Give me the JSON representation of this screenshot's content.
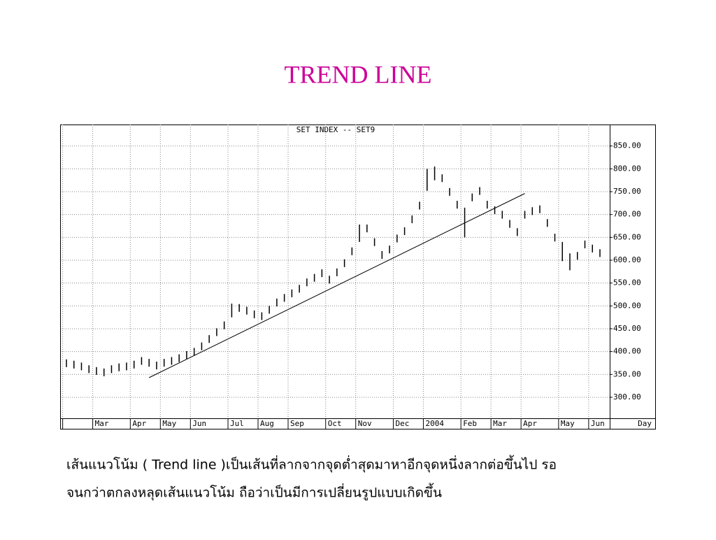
{
  "header": {
    "title": "TREND LINE"
  },
  "chart_data": {
    "type": "range_bar",
    "title": "SET INDEX -- SET9",
    "x_label": "Day",
    "color": "#000000",
    "grid": true,
    "categories": [
      "",
      null,
      null,
      null,
      "Mar",
      null,
      null,
      null,
      null,
      "Apr",
      null,
      null,
      null,
      "May",
      null,
      null,
      null,
      "Jun",
      null,
      null,
      null,
      null,
      "Jul",
      null,
      null,
      null,
      "Aug",
      null,
      null,
      null,
      "Sep",
      null,
      null,
      null,
      null,
      "Oct",
      null,
      null,
      null,
      "Nov",
      null,
      null,
      null,
      null,
      "Dec",
      null,
      null,
      null,
      "2004",
      null,
      null,
      null,
      null,
      "Feb",
      null,
      null,
      null,
      "Mar",
      null,
      null,
      null,
      "Apr",
      null,
      null,
      null,
      null,
      "May",
      null,
      null,
      null,
      "Jun",
      null
    ],
    "high": [
      383,
      380,
      376,
      370,
      366,
      363,
      370,
      374,
      376,
      380,
      388,
      384,
      378,
      384,
      388,
      394,
      401,
      408,
      420,
      436,
      451,
      466,
      505,
      504,
      498,
      490,
      486,
      500,
      516,
      526,
      536,
      546,
      560,
      570,
      580,
      566,
      582,
      602,
      628,
      678,
      678,
      648,
      620,
      632,
      656,
      672,
      698,
      728,
      800,
      805,
      788,
      758,
      730,
      715,
      746,
      760,
      730,
      718,
      708,
      688,
      670,
      708,
      716,
      720,
      690,
      658,
      640,
      615,
      618,
      643,
      634,
      624
    ],
    "low": [
      366,
      363,
      359,
      353,
      349,
      346,
      353,
      357,
      359,
      363,
      371,
      367,
      361,
      367,
      371,
      377,
      384,
      391,
      403,
      419,
      434,
      449,
      475,
      487,
      481,
      473,
      469,
      483,
      499,
      509,
      519,
      529,
      543,
      553,
      563,
      549,
      565,
      585,
      611,
      640,
      661,
      631,
      603,
      615,
      639,
      655,
      681,
      711,
      752,
      775,
      771,
      741,
      713,
      650,
      729,
      743,
      713,
      701,
      691,
      671,
      653,
      691,
      699,
      703,
      673,
      641,
      598,
      578,
      601,
      626,
      617,
      607
    ],
    "trend_line": {
      "from": {
        "week": 11,
        "value": 343
      },
      "to": {
        "week": 61,
        "value": 746
      }
    },
    "ylim": [
      254,
      897
    ],
    "yticks": [
      {
        "value": 300,
        "label": "300.00"
      },
      {
        "value": 350,
        "label": "350.00"
      },
      {
        "value": 400,
        "label": "400.00"
      },
      {
        "value": 450,
        "label": "450.00"
      },
      {
        "value": 500,
        "label": "500.00"
      },
      {
        "value": 550,
        "label": "550.00"
      },
      {
        "value": 600,
        "label": "600.00"
      },
      {
        "value": 650,
        "label": "650.00"
      },
      {
        "value": 700,
        "label": "700.00"
      },
      {
        "value": 750,
        "label": "750.00"
      },
      {
        "value": 800,
        "label": "800.00"
      },
      {
        "value": 850,
        "label": "850.00"
      }
    ]
  },
  "caption": {
    "lines": [
      "เส้นแนวโน้ม ( Trend line )เป็นเส้นที่ลากจากจุดต่ำสุดมาหาอีกจุดหนึ่งลากต่อขึ้นไป รอ",
      "จนกว่าตกลงหลุดเส้นแนวโน้ม ถือว่าเป็นมีการเปลี่ยนรูปแบบเกิดขึ้น"
    ]
  }
}
